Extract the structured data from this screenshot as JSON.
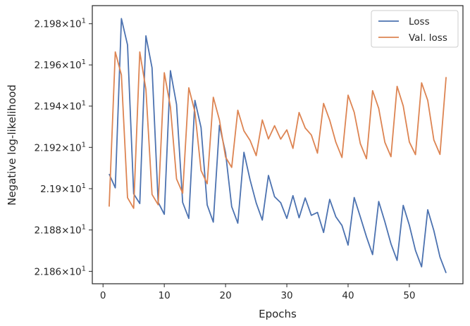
{
  "chart_data": {
    "type": "line",
    "title": "",
    "xlabel": "Epochs",
    "ylabel": "Negative log-likelihood",
    "xlim": [
      -1.75,
      58.75
    ],
    "ylim": [
      21.854,
      21.9888
    ],
    "y_scale": "log",
    "grid": false,
    "legend_position": "top-right",
    "x_ticks": [
      0,
      10,
      20,
      30,
      40,
      50
    ],
    "y_ticks": [
      {
        "value": 21.86,
        "base": "2.186",
        "sup": "1"
      },
      {
        "value": 21.88,
        "base": "2.188",
        "sup": "1"
      },
      {
        "value": 21.9,
        "base": "2.19",
        "sup": "1"
      },
      {
        "value": 21.92,
        "base": "2.192",
        "sup": "1"
      },
      {
        "value": 21.94,
        "base": "2.194",
        "sup": "1"
      },
      {
        "value": 21.96,
        "base": "2.196",
        "sup": "1"
      },
      {
        "value": 21.98,
        "base": "2.198",
        "sup": "1"
      }
    ],
    "x": [
      1,
      2,
      3,
      4,
      5,
      6,
      7,
      8,
      9,
      10,
      11,
      12,
      13,
      14,
      15,
      16,
      17,
      18,
      19,
      20,
      21,
      22,
      23,
      24,
      25,
      26,
      27,
      28,
      29,
      30,
      31,
      32,
      33,
      34,
      35,
      36,
      37,
      38,
      39,
      40,
      41,
      42,
      43,
      44,
      45,
      46,
      47,
      48,
      49,
      50,
      51,
      52,
      53,
      54,
      55,
      56
    ],
    "series": [
      {
        "name": "Loss",
        "color": "#4c72b0",
        "values": [
          21.9071,
          21.9004,
          21.9825,
          21.9697,
          21.8975,
          21.8928,
          21.9741,
          21.9586,
          21.8934,
          21.8876,
          21.9572,
          21.9408,
          21.8933,
          21.8856,
          21.9428,
          21.9296,
          21.8921,
          21.8838,
          21.9307,
          21.9174,
          21.8913,
          21.8833,
          21.9176,
          21.9043,
          21.8931,
          21.8848,
          21.9064,
          21.8961,
          21.8932,
          21.8856,
          21.8966,
          21.8859,
          21.8955,
          21.8871,
          21.8885,
          21.8788,
          21.8948,
          21.8864,
          21.8822,
          21.8727,
          21.8957,
          21.8863,
          21.8767,
          21.8681,
          21.8938,
          21.884,
          21.8733,
          21.8653,
          21.8919,
          21.8823,
          21.8701,
          21.8622,
          21.8898,
          21.8797,
          21.8669,
          21.8592
        ]
      },
      {
        "name": "Val. loss",
        "color": "#dd8452",
        "values": [
          21.8913,
          21.9663,
          21.9551,
          21.8956,
          21.8905,
          21.9663,
          21.9481,
          21.8972,
          21.8922,
          21.9562,
          21.9396,
          21.9047,
          21.8978,
          21.9489,
          21.9371,
          21.9088,
          21.9024,
          21.9443,
          21.9333,
          21.9153,
          21.9103,
          21.938,
          21.928,
          21.9234,
          21.916,
          21.9333,
          21.9241,
          21.9305,
          21.924,
          21.9285,
          21.9195,
          21.9369,
          21.9294,
          21.926,
          21.9172,
          21.9413,
          21.9332,
          21.9225,
          21.9151,
          21.9453,
          21.937,
          21.9218,
          21.9145,
          21.9475,
          21.9389,
          21.9225,
          21.9155,
          21.9496,
          21.9401,
          21.9226,
          21.9165,
          21.9513,
          21.9428,
          21.9236,
          21.9166,
          21.9541
        ]
      }
    ]
  }
}
